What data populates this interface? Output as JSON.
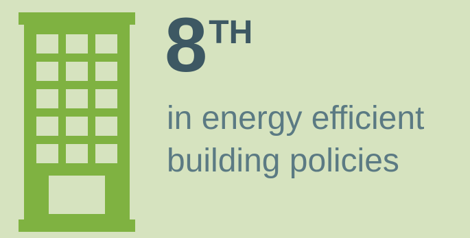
{
  "icon": {
    "name": "office-building-icon",
    "color": "#7fb241",
    "window_color": "#d6e3bf"
  },
  "rank": {
    "number": "8",
    "suffix": "TH"
  },
  "caption": {
    "line1": "in energy efficient",
    "line2": "building policies"
  },
  "colors": {
    "background": "#d6e3bf",
    "rank_text": "#3d5863",
    "caption_text": "#5b7a83"
  }
}
